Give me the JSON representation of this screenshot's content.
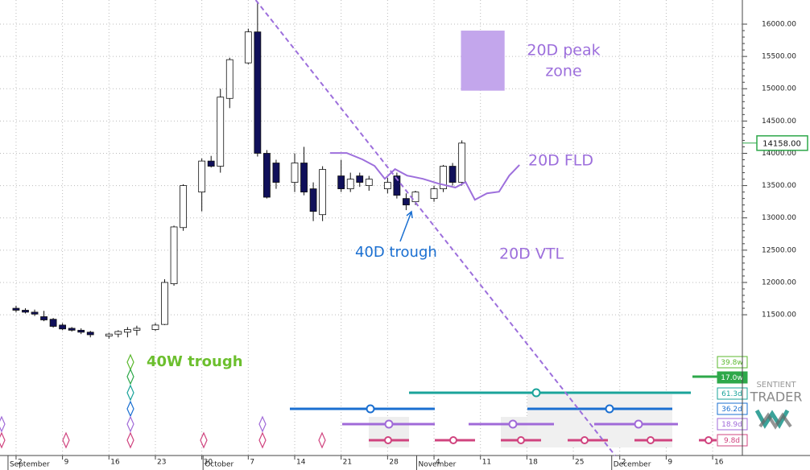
{
  "chart_data": {
    "type": "candlestick",
    "x": [
      0,
      1,
      2,
      3,
      4,
      5,
      6,
      7,
      8,
      10,
      11,
      12,
      13,
      15,
      16,
      17,
      18,
      20,
      21,
      22,
      23,
      25,
      26,
      27,
      28,
      30,
      31,
      32,
      33,
      35,
      36,
      37,
      38,
      40,
      41,
      42,
      43,
      45,
      46,
      47,
      48
    ],
    "open": [
      11600,
      11570,
      11540,
      11470,
      11430,
      11340,
      11290,
      11260,
      11230,
      11170,
      11200,
      11230,
      11260,
      11270,
      11350,
      11980,
      12850,
      13400,
      13880,
      13800,
      14850,
      15400,
      15880,
      14000,
      13850,
      13550,
      13850,
      13450,
      13050,
      13650,
      13450,
      13650,
      13500,
      13450,
      13650,
      13300,
      13250,
      13300,
      13450,
      13800,
      13550
    ],
    "high": [
      11640,
      11600,
      11580,
      11560,
      11450,
      11370,
      11310,
      11290,
      11250,
      11220,
      11260,
      11310,
      11330,
      11370,
      12050,
      12880,
      13520,
      13920,
      13960,
      15000,
      15480,
      15930,
      16350,
      14050,
      13900,
      14000,
      14100,
      13550,
      13800,
      13900,
      13700,
      13700,
      13650,
      13620,
      13700,
      13380,
      13420,
      13500,
      13820,
      13850,
      14200
    ],
    "low": [
      11540,
      11520,
      11480,
      11400,
      11300,
      11260,
      11240,
      11200,
      11150,
      11130,
      11150,
      11150,
      11180,
      11250,
      11340,
      11950,
      12800,
      13100,
      13780,
      13700,
      14700,
      15380,
      13950,
      13300,
      13450,
      13400,
      13350,
      12950,
      12950,
      13400,
      13400,
      13480,
      13420,
      13380,
      13300,
      13120,
      13200,
      13250,
      13400,
      13500,
      13500
    ],
    "close": [
      11570,
      11540,
      11510,
      11420,
      11320,
      11280,
      11260,
      11230,
      11190,
      11200,
      11240,
      11270,
      11290,
      11340,
      12000,
      12860,
      13500,
      13880,
      13800,
      14870,
      15450,
      15880,
      14000,
      13320,
      13550,
      13850,
      13400,
      13100,
      13750,
      13450,
      13600,
      13550,
      13600,
      13550,
      13350,
      13200,
      13400,
      13450,
      13800,
      13550,
      14158
    ],
    "xlim": [
      -1.73,
      78.2
    ],
    "ylim": [
      9320,
      16374
    ],
    "xticks": [
      {
        "value": 0,
        "label": "2"
      },
      {
        "value": 5,
        "label": "9"
      },
      {
        "value": 10,
        "label": "16"
      },
      {
        "value": 15,
        "label": "23"
      },
      {
        "value": 20,
        "label": "30"
      },
      {
        "value": 25,
        "label": "7"
      },
      {
        "value": 30,
        "label": "14"
      },
      {
        "value": 35,
        "label": "21"
      },
      {
        "value": 40,
        "label": "28"
      },
      {
        "value": 45,
        "label": "4"
      },
      {
        "value": 50,
        "label": "11"
      },
      {
        "value": 55,
        "label": "18"
      },
      {
        "value": 60,
        "label": "25"
      },
      {
        "value": 65,
        "label": "2"
      },
      {
        "value": 70,
        "label": "9"
      },
      {
        "value": 75,
        "label": "16"
      }
    ],
    "months": [
      {
        "value": 0,
        "label": "September"
      },
      {
        "value": 21,
        "label": "October"
      },
      {
        "value": 44,
        "label": "November"
      },
      {
        "value": 65,
        "label": "December"
      }
    ],
    "yticks": [
      {
        "value": 11500,
        "label": "11500.00"
      },
      {
        "value": 12000,
        "label": "12000.00"
      },
      {
        "value": 12500,
        "label": "12500.00"
      },
      {
        "value": 13000,
        "label": "13000.00"
      },
      {
        "value": 13500,
        "label": "13500.00"
      },
      {
        "value": 14000,
        "label": "14000.00"
      },
      {
        "value": 14500,
        "label": "14500.00"
      },
      {
        "value": 15000,
        "label": "15000.00"
      },
      {
        "value": 15500,
        "label": "15500.00"
      },
      {
        "value": 16000,
        "label": "16000.00"
      }
    ],
    "last_price": {
      "value": 14158,
      "label": "14158.00"
    },
    "grid": true,
    "up_color": "#ffffff",
    "down_color": "#10105a",
    "fld": {
      "name": "20D FLD",
      "color": "#9d6fdc",
      "x": [
        33.8,
        35.6,
        37.3,
        38.6,
        39.7,
        40.8,
        42.1,
        43.8,
        45.5,
        47.3,
        48.4,
        49.4,
        50.7,
        52.0,
        53.1,
        54.2
      ],
      "values": [
        14005,
        14005,
        13905,
        13805,
        13605,
        13755,
        13655,
        13605,
        13530,
        13470,
        13555,
        13280,
        13380,
        13405,
        13655,
        13820
      ]
    },
    "vtl": {
      "name": "20D VTL",
      "color": "#9d6fdc",
      "x": [
        25.8,
        64.5
      ],
      "values": [
        16374,
        9320
      ]
    },
    "peak_zone": {
      "name": [
        "20D peak",
        "zone"
      ],
      "color": "#c3a6ec",
      "x": [
        47.9,
        52.6
      ],
      "values": [
        14970,
        15900
      ]
    },
    "trough_40d": "40D trough",
    "trough_40w": "40W trough",
    "cycle_labels": [
      "39.8w",
      "17.0w",
      "61.3d",
      "36.2d",
      "18.9d",
      "9.8d"
    ],
    "logo": [
      "SENTIENT",
      "TRADER"
    ]
  }
}
